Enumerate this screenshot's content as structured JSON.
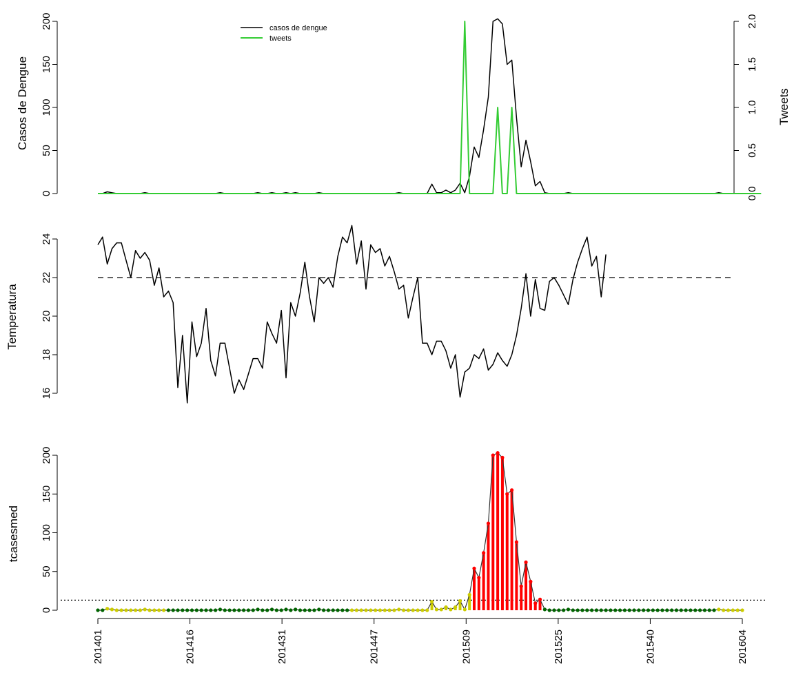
{
  "chart_data": [
    {
      "type": "line",
      "panel": "top",
      "xlabel": "",
      "ylabel": "Casos de Dengue",
      "ylabel_right": "Tweets",
      "yticks": [
        "0",
        "50",
        "100",
        "150",
        "200"
      ],
      "yticks_right": [
        "0.0",
        "0.5",
        "1.0",
        "1.5",
        "2.0"
      ],
      "ylim": [
        0,
        200
      ],
      "ylim_right": [
        0,
        2.0
      ],
      "legend_position": "top-center",
      "legend": [
        "casos de dengue",
        "tweets"
      ],
      "series": [
        {
          "name": "casos de dengue",
          "color": "#000000",
          "axis": "left",
          "values": [
            0,
            0,
            2,
            1,
            0,
            0,
            0,
            0,
            0,
            0,
            1,
            0,
            0,
            0,
            0,
            0,
            0,
            0,
            0,
            0,
            0,
            0,
            0,
            0,
            0,
            0,
            1,
            0,
            0,
            0,
            0,
            0,
            0,
            0,
            1,
            0,
            0,
            1,
            0,
            0,
            1,
            0,
            1,
            0,
            0,
            0,
            0,
            1,
            0,
            0,
            0,
            0,
            0,
            0,
            0,
            0,
            0,
            0,
            0,
            0,
            0,
            0,
            0,
            0,
            1,
            0,
            0,
            0,
            0,
            0,
            0,
            11,
            1,
            1,
            4,
            1,
            4,
            12,
            1,
            20,
            54,
            42,
            74,
            112,
            200,
            203,
            197,
            150,
            155,
            88,
            31,
            62,
            37,
            9,
            14,
            1,
            0,
            0,
            0,
            0,
            1,
            0,
            0,
            0,
            0,
            0,
            0,
            0,
            0,
            0,
            0,
            0,
            0,
            0,
            0,
            0,
            0,
            0,
            0,
            0,
            0,
            0,
            0,
            0,
            0,
            0,
            0,
            0,
            0,
            0,
            0,
            0,
            1,
            0,
            0,
            0,
            0,
            0
          ]
        },
        {
          "name": "tweets",
          "color": "#33cc33",
          "axis": "right",
          "values": [
            0,
            0,
            0,
            0,
            0,
            0,
            0,
            0,
            0,
            0,
            0,
            0,
            0,
            0,
            0,
            0,
            0,
            0,
            0,
            0,
            0,
            0,
            0,
            0,
            0,
            0,
            0,
            0,
            0,
            0,
            0,
            0,
            0,
            0,
            0,
            0,
            0,
            0,
            0,
            0,
            0,
            0,
            0,
            0,
            0,
            0,
            0,
            0,
            0,
            0,
            0,
            0,
            0,
            0,
            0,
            0,
            0,
            0,
            0,
            0,
            0,
            0,
            0,
            0,
            0,
            0,
            0,
            0,
            0,
            0,
            0,
            0,
            0,
            0,
            0,
            0,
            0,
            0,
            2,
            0,
            0,
            0,
            0,
            0,
            0,
            1,
            0,
            0,
            1,
            0,
            0,
            0,
            0,
            0,
            0,
            0,
            0,
            0,
            0,
            0,
            0,
            0,
            0,
            0,
            0,
            0,
            0,
            0,
            0,
            0,
            0,
            0,
            0,
            0,
            0,
            0,
            0,
            0,
            0,
            0,
            0,
            0,
            0,
            0,
            0,
            0,
            0,
            0,
            0,
            0,
            0,
            0,
            0,
            0,
            0,
            0,
            0,
            0,
            0,
            0,
            0,
            0
          ]
        }
      ]
    },
    {
      "type": "line",
      "panel": "middle",
      "xlabel": "",
      "ylabel": "Temperatura",
      "yticks": [
        "16",
        "18",
        "20",
        "22",
        "24"
      ],
      "ylim": [
        16,
        24
      ],
      "reference_line": {
        "value": 22,
        "style": "dashed"
      },
      "series": [
        {
          "color": "#000000",
          "values": [
            23.7,
            24.1,
            22.7,
            23.5,
            23.8,
            23.8,
            22.9,
            22.0,
            23.4,
            23.0,
            23.3,
            22.9,
            21.6,
            22.5,
            21.0,
            21.3,
            20.7,
            16.3,
            19.0,
            15.5,
            19.7,
            17.9,
            18.6,
            20.4,
            17.7,
            16.9,
            18.6,
            18.6,
            17.3,
            16.0,
            16.7,
            16.2,
            17.0,
            17.8,
            17.8,
            17.3,
            19.7,
            19.1,
            18.6,
            20.3,
            16.8,
            20.7,
            20.0,
            21.2,
            22.8,
            21.0,
            19.7,
            22.0,
            21.7,
            22.0,
            21.5,
            23.1,
            24.1,
            23.8,
            24.7,
            22.7,
            23.9,
            21.4,
            23.7,
            23.3,
            23.5,
            22.6,
            23.1,
            22.3,
            21.4,
            21.6,
            19.9,
            21.0,
            22.0,
            18.6,
            18.6,
            18.0,
            18.7,
            18.7,
            18.2,
            17.3,
            18.0,
            15.8,
            17.1,
            17.3,
            18.0,
            17.8,
            18.3,
            17.2,
            17.5,
            18.1,
            17.7,
            17.4,
            18.0,
            19.0,
            20.4,
            22.2,
            20.0,
            21.9,
            20.4,
            20.3,
            21.8,
            22.0,
            21.6,
            21.1,
            20.6,
            21.9,
            22.8,
            23.5,
            24.1,
            22.6,
            23.1,
            21.0,
            23.2
          ]
        }
      ]
    },
    {
      "type": "bar",
      "panel": "bottom",
      "xlabel": "",
      "ylabel": "tcasesmed",
      "yticks": [
        "0",
        "50",
        "100",
        "150",
        "200"
      ],
      "ylim": [
        0,
        200
      ],
      "reference_line": {
        "value": 13,
        "style": "dotted"
      },
      "xticks": [
        "201401",
        "201416",
        "201431",
        "201447",
        "201509",
        "201525",
        "201540",
        "201604"
      ],
      "colors": {
        "low": "#006400",
        "medium": "#cccc00",
        "high": "#ff0000"
      },
      "values": [
        0,
        0,
        2,
        1,
        0,
        0,
        0,
        0,
        0,
        0,
        1,
        0,
        0,
        0,
        0,
        0,
        0,
        0,
        0,
        0,
        0,
        0,
        0,
        0,
        0,
        0,
        1,
        0,
        0,
        0,
        0,
        0,
        0,
        0,
        1,
        0,
        0,
        1,
        0,
        0,
        1,
        0,
        1,
        0,
        0,
        0,
        0,
        1,
        0,
        0,
        0,
        0,
        0,
        0,
        0,
        0,
        0,
        0,
        0,
        0,
        0,
        0,
        0,
        0,
        1,
        0,
        0,
        0,
        0,
        0,
        0,
        11,
        1,
        1,
        4,
        1,
        4,
        12,
        1,
        20,
        54,
        42,
        74,
        112,
        200,
        203,
        197,
        150,
        155,
        88,
        31,
        62,
        37,
        9,
        14,
        1,
        0,
        0,
        0,
        0,
        1,
        0,
        0,
        0,
        0,
        0,
        0,
        0,
        0,
        0,
        0,
        0,
        0,
        0,
        0,
        0,
        0,
        0,
        0,
        0,
        0,
        0,
        0,
        0,
        0,
        0,
        0,
        0,
        0,
        0,
        0,
        0,
        1,
        0,
        0,
        0,
        0,
        0
      ],
      "levels": [
        "low",
        "low",
        "medium",
        "medium",
        "medium",
        "medium",
        "medium",
        "medium",
        "medium",
        "medium",
        "medium",
        "medium",
        "medium",
        "medium",
        "medium",
        "low",
        "low",
        "low",
        "low",
        "low",
        "low",
        "low",
        "low",
        "low",
        "low",
        "low",
        "low",
        "low",
        "low",
        "low",
        "low",
        "low",
        "low",
        "low",
        "low",
        "low",
        "low",
        "low",
        "low",
        "low",
        "low",
        "low",
        "low",
        "low",
        "low",
        "low",
        "low",
        "low",
        "low",
        "low",
        "low",
        "low",
        "low",
        "low",
        "medium",
        "medium",
        "medium",
        "medium",
        "medium",
        "medium",
        "medium",
        "medium",
        "medium",
        "medium",
        "medium",
        "medium",
        "medium",
        "medium",
        "medium",
        "medium",
        "medium",
        "medium",
        "medium",
        "medium",
        "medium",
        "medium",
        "medium",
        "medium",
        "medium",
        "medium",
        "high",
        "high",
        "high",
        "high",
        "high",
        "high",
        "high",
        "high",
        "high",
        "high",
        "high",
        "high",
        "high",
        "high",
        "high",
        "low",
        "low",
        "low",
        "low",
        "low",
        "low",
        "low",
        "low",
        "low",
        "low",
        "low",
        "low",
        "low",
        "low",
        "low",
        "low",
        "low",
        "low",
        "low",
        "low",
        "low",
        "low",
        "low",
        "low",
        "low",
        "low",
        "low",
        "low",
        "low",
        "low",
        "low",
        "low",
        "low",
        "low",
        "low",
        "low",
        "low",
        "medium",
        "medium",
        "medium",
        "medium",
        "medium",
        "medium"
      ]
    }
  ]
}
